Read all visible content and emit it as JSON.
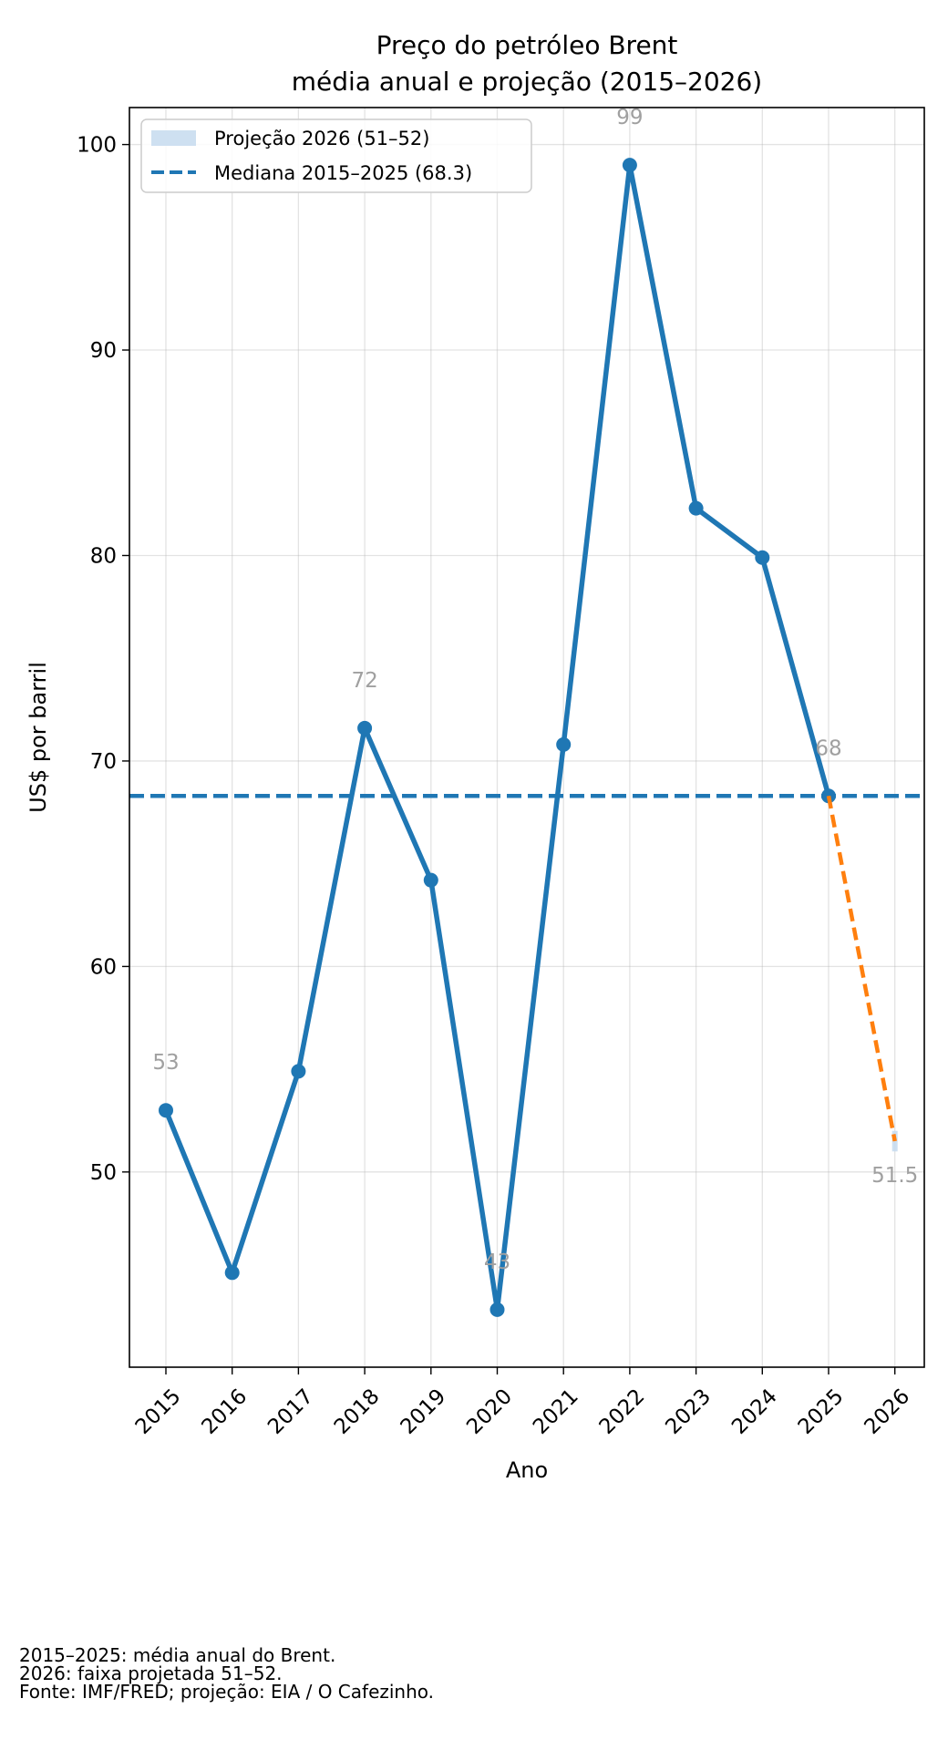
{
  "chart_data": {
    "type": "line",
    "title": "Preço do petróleo Brent",
    "subtitle": "média anual e projeção (2015–2026)",
    "xlabel": "Ano",
    "ylabel": "US$ por barril",
    "categories": [
      "2015",
      "2016",
      "2017",
      "2018",
      "2019",
      "2020",
      "2021",
      "2022",
      "2023",
      "2024",
      "2025",
      "2026"
    ],
    "ylim": [
      40.5,
      101.8
    ],
    "yticks": [
      50,
      60,
      70,
      80,
      90,
      100
    ],
    "grid": true,
    "legend_position": "upper-left",
    "series": [
      {
        "name": "",
        "x": [
          "2015",
          "2016",
          "2017",
          "2018",
          "2019",
          "2020",
          "2021",
          "2022",
          "2023",
          "2024",
          "2025"
        ],
        "values": [
          53.0,
          45.1,
          54.9,
          71.6,
          64.2,
          43.3,
          70.8,
          99.0,
          82.3,
          79.9,
          68.3
        ],
        "color": "#1f77b4"
      },
      {
        "name": "",
        "x": [
          "2025",
          "2026"
        ],
        "values": [
          68.3,
          51.5
        ],
        "color": "#ff7f0e",
        "style": "dashed"
      }
    ],
    "projection_band": {
      "label": "Projeção 2026 (51–52)",
      "x": "2026",
      "low": 51,
      "high": 52,
      "color": "#c6dbef"
    },
    "median_line": {
      "label": "Mediana 2015–2025 (68.3)",
      "value": 68.3,
      "color": "#1f77b4",
      "style": "dashed"
    },
    "data_labels": [
      {
        "x": "2015",
        "y": 53.0,
        "text": "53"
      },
      {
        "x": "2018",
        "y": 71.6,
        "text": "72"
      },
      {
        "x": "2020",
        "y": 43.3,
        "text": "43"
      },
      {
        "x": "2022",
        "y": 99.0,
        "text": "99"
      },
      {
        "x": "2025",
        "y": 68.3,
        "text": "68"
      },
      {
        "x": "2026",
        "y": 51.5,
        "text": "51.5"
      }
    ]
  },
  "footnotes": [
    "2015–2025: média anual do Brent.",
    "2026: faixa projetada 51–52.",
    "Fonte: IMF/FRED; projeção: EIA / O Cafezinho."
  ]
}
